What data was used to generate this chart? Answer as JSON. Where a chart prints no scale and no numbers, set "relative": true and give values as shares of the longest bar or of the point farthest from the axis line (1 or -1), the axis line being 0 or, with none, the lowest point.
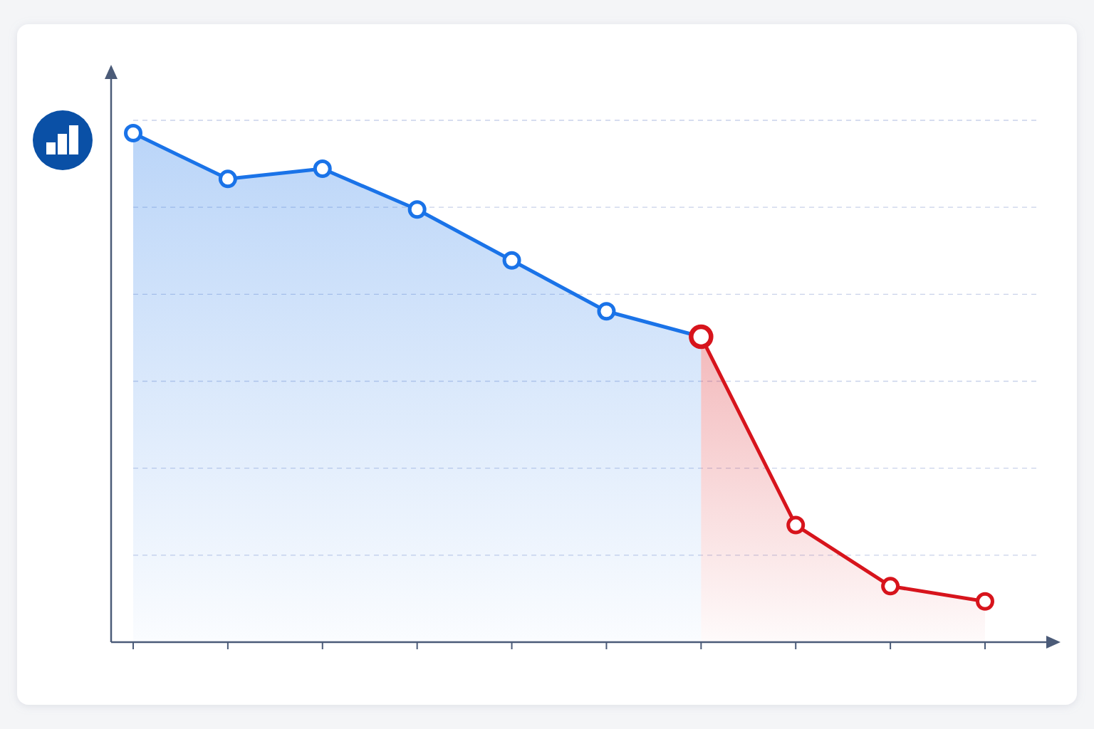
{
  "chart_data": {
    "type": "area",
    "relative": true,
    "marker": "circle",
    "grid": "y",
    "categories": [
      null,
      null,
      null,
      null,
      null,
      null,
      null,
      null,
      null,
      null
    ],
    "series": [
      {
        "color": "#1a73e8",
        "values": [
          1,
          0.91,
          0.93,
          0.85,
          0.75,
          0.65,
          0.6,
          null,
          null,
          null
        ]
      },
      {
        "color": "#d7141c",
        "values": [
          null,
          null,
          null,
          null,
          null,
          null,
          0.6,
          0.23,
          0.11,
          0.08
        ]
      }
    ]
  }
}
